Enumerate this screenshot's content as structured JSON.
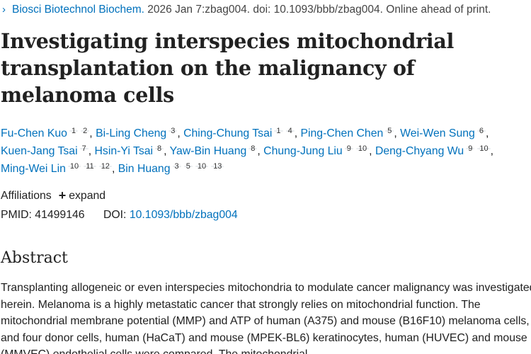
{
  "citation": {
    "chevron": "›",
    "journal": "Biosci Biotechnol Biochem.",
    "details": " 2026 Jan 7:zbag004. doi: 10.1093/bbb/zbag004. Online ahead of print."
  },
  "title": "Investigating interspecies mitochondrial transplantation on the malignancy of melanoma cells",
  "authors": [
    {
      "name": "Fu-Chen Kuo",
      "affs": [
        "1",
        "2"
      ]
    },
    {
      "name": "Bi-Ling Cheng",
      "affs": [
        "3"
      ]
    },
    {
      "name": "Ching-Chung Tsai",
      "affs": [
        "1",
        "4"
      ]
    },
    {
      "name": "Ping-Chen Chen",
      "affs": [
        "5"
      ]
    },
    {
      "name": "Wei-Wen Sung",
      "affs": [
        "6"
      ]
    },
    {
      "name": "Kuen-Jang Tsai",
      "affs": [
        "7"
      ]
    },
    {
      "name": "Hsin-Yi Tsai",
      "affs": [
        "8"
      ]
    },
    {
      "name": "Yaw-Bin Huang",
      "affs": [
        "8"
      ]
    },
    {
      "name": "Chung-Jung Liu",
      "affs": [
        "9",
        "10"
      ]
    },
    {
      "name": "Deng-Chyang Wu",
      "affs": [
        "9",
        "10"
      ]
    },
    {
      "name": "Ming-Wei Lin",
      "affs": [
        "10",
        "11",
        "12"
      ]
    },
    {
      "name": "Bin Huang",
      "affs": [
        "3",
        "5",
        "10",
        "13"
      ]
    }
  ],
  "affiliations": {
    "label": "Affiliations",
    "expand_icon": "+",
    "expand_label": "expand"
  },
  "identifiers": {
    "pmid_label": "PMID:",
    "pmid": "41499146",
    "doi_label": "DOI:",
    "doi": "10.1093/bbb/zbag004"
  },
  "abstract": {
    "heading": "Abstract",
    "text": "Transplanting allogeneic or even interspecies mitochondria to modulate cancer malignancy was investigated herein. Melanoma is a highly metastatic cancer that strongly relies on mitochondrial function. The mitochondrial membrane potential (MMP) and ATP of human (A375) and mouse (B16F10) melanoma cells, and four donor cells, human (HaCaT) and mouse (MPEK-BL6) keratinocytes, human (HUVEC) and mouse (MMVEC) endothelial cells were compared. The mitochondrial"
  }
}
